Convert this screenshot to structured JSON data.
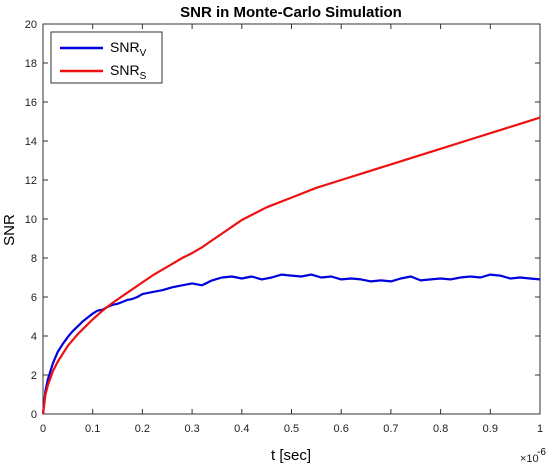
{
  "chart_data": {
    "type": "line",
    "title": "SNR in Monte-Carlo Simulation",
    "xlabel": "t [sec]",
    "ylabel": "SNR",
    "x_multiplier_label": "×10",
    "x_multiplier_exp": "-6",
    "xlim": [
      0,
      1
    ],
    "ylim": [
      0,
      20
    ],
    "xticks": [
      0,
      0.1,
      0.2,
      0.3,
      0.4,
      0.5,
      0.6,
      0.7,
      0.8,
      0.9,
      1
    ],
    "yticks": [
      0,
      2,
      4,
      6,
      8,
      10,
      12,
      14,
      16,
      18,
      20
    ],
    "xtick_labels": [
      "0",
      "0.1",
      "0.2",
      "0.3",
      "0.4",
      "0.5",
      "0.6",
      "0.7",
      "0.8",
      "0.9",
      "1"
    ],
    "ytick_labels": [
      "0",
      "2",
      "4",
      "6",
      "8",
      "10",
      "12",
      "14",
      "16",
      "18",
      "20"
    ],
    "grid": false,
    "legend_position": "top-left",
    "series": [
      {
        "name": "SNR",
        "subscript": "V",
        "color": "#0000dd",
        "x": [
          0,
          0.005,
          0.01,
          0.02,
          0.03,
          0.04,
          0.05,
          0.06,
          0.07,
          0.08,
          0.09,
          0.1,
          0.11,
          0.12,
          0.13,
          0.14,
          0.15,
          0.16,
          0.17,
          0.18,
          0.19,
          0.2,
          0.22,
          0.24,
          0.26,
          0.28,
          0.3,
          0.32,
          0.34,
          0.36,
          0.38,
          0.4,
          0.42,
          0.44,
          0.46,
          0.48,
          0.5,
          0.52,
          0.54,
          0.56,
          0.58,
          0.6,
          0.62,
          0.64,
          0.66,
          0.68,
          0.7,
          0.72,
          0.74,
          0.76,
          0.78,
          0.8,
          0.82,
          0.84,
          0.86,
          0.88,
          0.9,
          0.92,
          0.94,
          0.96,
          0.98,
          1.0
        ],
        "values": [
          0,
          1.2,
          1.8,
          2.6,
          3.2,
          3.6,
          3.95,
          4.25,
          4.5,
          4.75,
          4.95,
          5.15,
          5.3,
          5.35,
          5.5,
          5.6,
          5.65,
          5.75,
          5.85,
          5.9,
          6.0,
          6.15,
          6.25,
          6.35,
          6.5,
          6.6,
          6.7,
          6.6,
          6.85,
          7.0,
          7.05,
          6.95,
          7.05,
          6.9,
          7.0,
          7.15,
          7.1,
          7.05,
          7.15,
          7.0,
          7.05,
          6.9,
          6.95,
          6.9,
          6.8,
          6.85,
          6.8,
          6.95,
          7.05,
          6.85,
          6.9,
          6.95,
          6.9,
          7.0,
          7.05,
          7.0,
          7.15,
          7.1,
          6.95,
          7.0,
          6.95,
          6.9
        ]
      },
      {
        "name": "SNR",
        "subscript": "S",
        "color": "#ee1111",
        "x": [
          0,
          0.005,
          0.01,
          0.02,
          0.03,
          0.04,
          0.05,
          0.06,
          0.07,
          0.08,
          0.09,
          0.1,
          0.12,
          0.14,
          0.16,
          0.18,
          0.2,
          0.22,
          0.24,
          0.26,
          0.28,
          0.3,
          0.32,
          0.34,
          0.36,
          0.38,
          0.4,
          0.45,
          0.5,
          0.55,
          0.6,
          0.65,
          0.7,
          0.75,
          0.8,
          0.85,
          0.9,
          0.95,
          1.0
        ],
        "values": [
          0,
          1.0,
          1.5,
          2.2,
          2.7,
          3.1,
          3.5,
          3.8,
          4.1,
          4.35,
          4.6,
          4.85,
          5.3,
          5.7,
          6.05,
          6.4,
          6.75,
          7.1,
          7.4,
          7.7,
          8.0,
          8.25,
          8.55,
          8.9,
          9.25,
          9.6,
          9.95,
          10.6,
          11.1,
          11.6,
          12.0,
          12.4,
          12.8,
          13.2,
          13.6,
          14.0,
          14.4,
          14.8,
          15.2
        ]
      }
    ]
  }
}
